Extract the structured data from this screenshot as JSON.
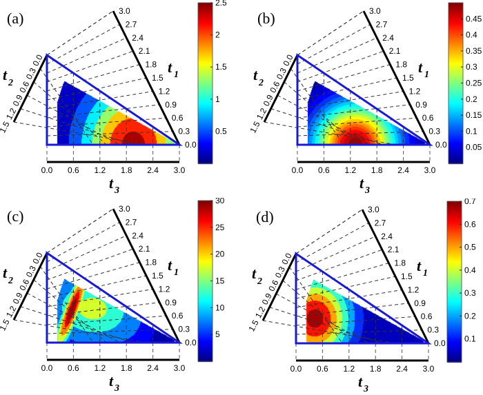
{
  "chart_data": [
    {
      "type": "heatmap",
      "subtype": "ternary-filled-contour",
      "panel_label": "(a)",
      "axes": {
        "t1": {
          "label": "t",
          "subscript": "1",
          "ticks": [
            "0.0",
            "0.3",
            "0.6",
            "0.9",
            "1.2",
            "1.5",
            "1.8",
            "2.1",
            "2.4",
            "2.7",
            "3.0"
          ],
          "range": [
            0,
            3.0
          ]
        },
        "t2": {
          "label": "t",
          "subscript": "2",
          "ticks": [
            "1.5",
            "1.2",
            "0.9",
            "0.6",
            "0.3",
            "0.0"
          ],
          "range": [
            0,
            1.5
          ]
        },
        "t3": {
          "label": "t",
          "subscript": "3",
          "ticks": [
            "0.0",
            "0.6",
            "1.2",
            "1.8",
            "2.4",
            "3.0"
          ],
          "range": [
            0,
            3.0
          ]
        }
      },
      "colorbar": {
        "range": [
          0,
          2.5
        ],
        "ticks": [
          "0.5",
          "1",
          "1.5",
          "2",
          "2.5"
        ],
        "tick_values": [
          0.5,
          1,
          1.5,
          2,
          2.5
        ],
        "colormap": "jet"
      },
      "levels": [
        0.0,
        0.35,
        0.7,
        1.1,
        1.5,
        1.9,
        2.3
      ],
      "peak": {
        "t3": 1.9,
        "t1": 0.05,
        "value": 2.4
      },
      "description": "Single broad peak near the t3 axis around t3=1.8-2.0"
    },
    {
      "type": "heatmap",
      "subtype": "ternary-filled-contour",
      "panel_label": "(b)",
      "axes": {
        "t1": {
          "label": "t",
          "subscript": "1",
          "ticks": [
            "0.0",
            "0.3",
            "0.6",
            "0.9",
            "1.2",
            "1.5",
            "1.8",
            "2.1",
            "2.4",
            "2.7",
            "3.0"
          ],
          "range": [
            0,
            3.0
          ]
        },
        "t2": {
          "label": "t",
          "subscript": "2",
          "ticks": [
            "1.5",
            "1.2",
            "0.9",
            "0.6",
            "0.3",
            "0.0"
          ],
          "range": [
            0,
            1.5
          ]
        },
        "t3": {
          "label": "t",
          "subscript": "3",
          "ticks": [
            "0.0",
            "0.6",
            "1.2",
            "1.8",
            "2.4",
            "3.0"
          ],
          "range": [
            0,
            3.0
          ]
        }
      },
      "colorbar": {
        "range": [
          0,
          0.5
        ],
        "ticks": [
          "0.05",
          "0.1",
          "0.15",
          "0.2",
          "0.25",
          "0.3",
          "0.35",
          "0.4",
          "0.45"
        ],
        "tick_values": [
          0.05,
          0.1,
          0.15,
          0.2,
          0.25,
          0.3,
          0.35,
          0.4,
          0.45
        ],
        "colormap": "jet"
      },
      "levels": [
        0.0,
        0.025,
        0.05,
        0.075,
        0.1,
        0.125,
        0.15,
        0.175,
        0.2,
        0.225,
        0.25,
        0.275,
        0.3,
        0.325,
        0.35,
        0.375,
        0.4,
        0.425,
        0.45,
        0.475
      ],
      "peak": {
        "t3": 1.3,
        "t1": 0.05,
        "value": 0.48
      },
      "description": "Single peak near the t3 axis around t3=1.2-1.4 with many finely spaced contour bands"
    },
    {
      "type": "heatmap",
      "subtype": "ternary-filled-contour",
      "panel_label": "(c)",
      "axes": {
        "t1": {
          "label": "t",
          "subscript": "1",
          "ticks": [
            "0.0",
            "0.3",
            "0.6",
            "0.9",
            "1.2",
            "1.5",
            "1.8",
            "2.1",
            "2.4",
            "2.7",
            "3.0"
          ],
          "range": [
            0,
            3.0
          ]
        },
        "t2": {
          "label": "t",
          "subscript": "2",
          "ticks": [
            "1.5",
            "1.2",
            "0.9",
            "0.6",
            "0.3",
            "0.0"
          ],
          "range": [
            0,
            1.5
          ]
        },
        "t3": {
          "label": "t",
          "subscript": "3",
          "ticks": [
            "0.0",
            "0.6",
            "1.2",
            "1.8",
            "2.4",
            "3.0"
          ],
          "range": [
            0,
            3.0
          ]
        }
      },
      "colorbar": {
        "range": [
          0,
          30
        ],
        "ticks": [
          "5",
          "10",
          "15",
          "20",
          "25",
          "30"
        ],
        "tick_values": [
          5,
          10,
          15,
          20,
          25,
          30
        ],
        "colormap": "jet"
      },
      "levels": [
        0,
        2.5,
        5,
        10,
        15,
        20,
        25,
        28
      ],
      "peak": {
        "t3": 0.35,
        "t1": 0.7,
        "value": 29
      },
      "description": "Elongated ridge rising diagonally from near t3=0.2 toward t3=0.6,t1=0.9"
    },
    {
      "type": "heatmap",
      "subtype": "ternary-filled-contour",
      "panel_label": "(d)",
      "axes": {
        "t1": {
          "label": "t",
          "subscript": "1",
          "ticks": [
            "0.0",
            "0.3",
            "0.6",
            "0.9",
            "1.2",
            "1.5",
            "1.8",
            "2.1",
            "2.4",
            "2.7",
            "3.0"
          ],
          "range": [
            0,
            3.0
          ]
        },
        "t2": {
          "label": "t",
          "subscript": "2",
          "ticks": [
            "1.5",
            "1.2",
            "0.9",
            "0.6",
            "0.3",
            "0.0"
          ],
          "range": [
            0,
            1.5
          ]
        },
        "t3": {
          "label": "t",
          "subscript": "3",
          "ticks": [
            "0.0",
            "0.6",
            "1.2",
            "1.8",
            "2.4",
            "3.0"
          ],
          "range": [
            0,
            3.0
          ]
        }
      },
      "colorbar": {
        "range": [
          0,
          0.7
        ],
        "ticks": [
          "0.1",
          "0.2",
          "0.3",
          "0.4",
          "0.5",
          "0.6",
          "0.7"
        ],
        "tick_values": [
          0.1,
          0.2,
          0.3,
          0.4,
          0.5,
          0.6,
          0.7
        ],
        "colormap": "jet"
      },
      "levels": [
        0,
        0.08,
        0.16,
        0.25,
        0.35,
        0.45,
        0.55,
        0.65
      ],
      "peak": {
        "t3": 0.4,
        "t1": 0.35,
        "value": 0.68
      },
      "description": "Compact oval peak near t3=0.3-0.5, t1=0.3-0.5"
    }
  ]
}
